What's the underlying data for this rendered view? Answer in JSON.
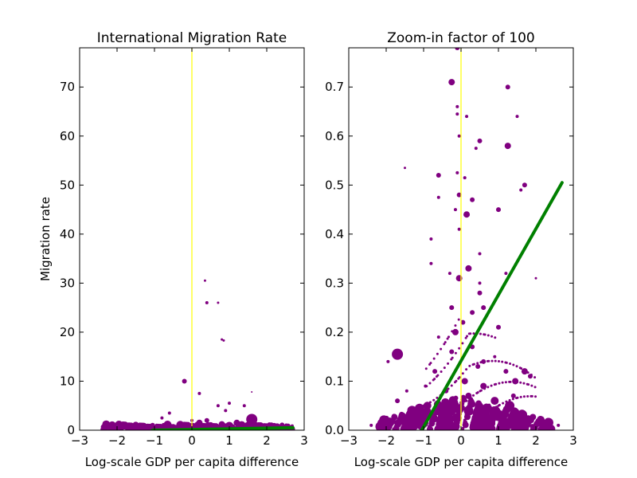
{
  "figure": {
    "background": "#ffffff"
  },
  "chart_data": [
    {
      "type": "scatter",
      "title": "International Migration Rate",
      "xlabel": "Log-scale GDP per capita difference",
      "ylabel": "Migration rate",
      "xlim": [
        -3,
        3
      ],
      "ylim": [
        0,
        78
      ],
      "xticks": [
        "−3",
        "−2",
        "−1",
        "0",
        "1",
        "2",
        "3"
      ],
      "yticks": [
        "0",
        "10",
        "20",
        "30",
        "40",
        "50",
        "60",
        "70"
      ],
      "colors": {
        "points": "#800080",
        "fit_line": "#008000",
        "zero_line": "#ffff00"
      },
      "grid": false,
      "zero_line_x": 0,
      "fit_line": {
        "x": [
          -1.05,
          2.7
        ],
        "y": [
          0.0,
          0.5
        ]
      },
      "series": [
        {
          "points": [
            [
              -2.4,
              0.2,
              2
            ],
            [
              -2.1,
              0.3,
              2
            ],
            [
              -1.9,
              0.5,
              3
            ],
            [
              -1.7,
              0.4,
              4
            ],
            [
              -1.5,
              0.8,
              5
            ],
            [
              -1.3,
              0.6,
              4
            ],
            [
              -1.1,
              0.5,
              3
            ],
            [
              -0.9,
              0.7,
              3
            ],
            [
              -0.7,
              0.4,
              3
            ],
            [
              -0.5,
              0.6,
              4
            ],
            [
              -0.3,
              1.0,
              3
            ],
            [
              -0.2,
              0.5,
              5
            ],
            [
              -0.1,
              1.2,
              3
            ],
            [
              0.1,
              0.8,
              4
            ],
            [
              0.2,
              1.5,
              4
            ],
            [
              0.3,
              0.6,
              5
            ],
            [
              0.4,
              2.0,
              3
            ],
            [
              0.5,
              1.0,
              4
            ],
            [
              0.6,
              0.7,
              3
            ],
            [
              0.8,
              1.2,
              4
            ],
            [
              1.0,
              0.9,
              5
            ],
            [
              1.2,
              1.5,
              4
            ],
            [
              1.4,
              0.6,
              3
            ],
            [
              1.6,
              2.2,
              7
            ],
            [
              1.8,
              0.8,
              3
            ],
            [
              2.0,
              0.5,
              3
            ],
            [
              2.2,
              1.0,
              3
            ],
            [
              2.5,
              0.4,
              2
            ],
            [
              2.7,
              0.3,
              2
            ],
            [
              -0.8,
              2.5,
              2
            ],
            [
              -0.6,
              3.5,
              2
            ],
            [
              0.2,
              7.5,
              2
            ],
            [
              0.7,
              5.0,
              2
            ],
            [
              1.0,
              5.5,
              2
            ],
            [
              0.9,
              4.0,
              2
            ],
            [
              -0.2,
              10.0,
              3
            ],
            [
              1.4,
              5.0,
              2
            ],
            [
              1.6,
              7.8,
              1
            ],
            [
              0.0,
              2.0,
              2
            ],
            [
              0.4,
              26.0,
              2
            ],
            [
              0.7,
              26.0,
              1.5
            ],
            [
              0.35,
              30.5,
              1.5
            ],
            [
              0.8,
              18.5,
              1.5
            ],
            [
              0.85,
              18.3,
              1.5
            ]
          ]
        }
      ]
    },
    {
      "type": "scatter",
      "title": "Zoom-in factor of 100",
      "xlabel": "Log-scale GDP per capita difference",
      "ylabel": "",
      "xlim": [
        -3,
        3
      ],
      "ylim": [
        0,
        0.78
      ],
      "xticks": [
        "−3",
        "−2",
        "−1",
        "0",
        "1",
        "2",
        "3"
      ],
      "yticks": [
        "0.0",
        "0.1",
        "0.2",
        "0.3",
        "0.4",
        "0.5",
        "0.6",
        "0.7"
      ],
      "colors": {
        "points": "#800080",
        "fit_line": "#008000",
        "zero_line": "#ffff00"
      },
      "grid": false,
      "zero_line_x": 0,
      "fit_line": {
        "x": [
          -1.05,
          2.7
        ],
        "y": [
          0.0,
          0.505
        ]
      },
      "series": [
        {
          "points": [
            [
              -0.1,
              0.78,
              3
            ],
            [
              -0.25,
              0.71,
              4
            ],
            [
              1.25,
              0.7,
              3
            ],
            [
              -0.1,
              0.66,
              2
            ],
            [
              -0.1,
              0.645,
              2
            ],
            [
              1.5,
              0.64,
              2
            ],
            [
              0.15,
              0.64,
              2
            ],
            [
              -0.05,
              0.6,
              2
            ],
            [
              0.5,
              0.59,
              3
            ],
            [
              1.25,
              0.58,
              4
            ],
            [
              0.4,
              0.575,
              2
            ],
            [
              -1.5,
              0.535,
              1.5
            ],
            [
              -0.6,
              0.52,
              3
            ],
            [
              0.1,
              0.515,
              2
            ],
            [
              -0.1,
              0.525,
              2
            ],
            [
              1.7,
              0.5,
              3
            ],
            [
              1.6,
              0.49,
              2
            ],
            [
              -0.6,
              0.475,
              2
            ],
            [
              -0.05,
              0.48,
              3
            ],
            [
              0.15,
              0.44,
              4
            ],
            [
              -0.15,
              0.45,
              2
            ],
            [
              1.0,
              0.45,
              3
            ],
            [
              0.3,
              0.47,
              3
            ],
            [
              -0.05,
              0.41,
              2
            ],
            [
              -0.8,
              0.39,
              2
            ],
            [
              -0.8,
              0.34,
              2
            ],
            [
              0.5,
              0.36,
              2
            ],
            [
              -0.3,
              0.32,
              2
            ],
            [
              0.2,
              0.33,
              4
            ],
            [
              -0.05,
              0.31,
              4
            ],
            [
              1.2,
              0.32,
              2
            ],
            [
              2.0,
              0.31,
              1.5
            ],
            [
              0.5,
              0.3,
              2
            ],
            [
              0.5,
              0.28,
              3
            ],
            [
              -0.25,
              0.25,
              3
            ],
            [
              -0.15,
              0.2,
              4
            ],
            [
              0.05,
              0.22,
              3
            ],
            [
              0.3,
              0.24,
              3
            ],
            [
              0.6,
              0.25,
              3
            ],
            [
              1.0,
              0.21,
              3
            ],
            [
              -1.7,
              0.155,
              7
            ],
            [
              -1.95,
              0.14,
              2
            ],
            [
              -0.6,
              0.19,
              2
            ],
            [
              -0.25,
              0.16,
              3
            ],
            [
              0.3,
              0.17,
              3
            ],
            [
              0.45,
              0.13,
              3
            ],
            [
              0.6,
              0.14,
              3
            ],
            [
              0.9,
              0.15,
              2
            ],
            [
              1.2,
              0.12,
              3
            ],
            [
              1.7,
              0.12,
              4
            ],
            [
              1.85,
              0.11,
              3
            ],
            [
              1.45,
              0.1,
              4
            ],
            [
              -0.7,
              0.12,
              3
            ],
            [
              -0.95,
              0.09,
              2
            ],
            [
              0.1,
              0.1,
              4
            ],
            [
              0.6,
              0.09,
              4
            ],
            [
              1.4,
              0.07,
              3
            ],
            [
              -1.45,
              0.08,
              2
            ],
            [
              -1.7,
              0.06,
              3
            ],
            [
              -0.4,
              0.08,
              3
            ],
            [
              0.2,
              0.07,
              4
            ],
            [
              0.9,
              0.06,
              5
            ],
            [
              1.3,
              0.05,
              6
            ],
            [
              -0.9,
              0.05,
              5
            ],
            [
              -1.25,
              0.03,
              3
            ],
            [
              -0.6,
              0.04,
              6
            ],
            [
              -0.2,
              0.05,
              7
            ],
            [
              0.2,
              0.04,
              6
            ],
            [
              0.5,
              0.03,
              5
            ],
            [
              1.0,
              0.03,
              7
            ],
            [
              1.6,
              0.02,
              4
            ],
            [
              -2.4,
              0.01,
              2
            ],
            [
              -2.2,
              0.005,
              3
            ],
            [
              -1.7,
              0.015,
              4
            ],
            [
              -1.4,
              0.01,
              4
            ],
            [
              -1.0,
              0.015,
              6
            ],
            [
              -0.3,
              0.01,
              6
            ],
            [
              0.4,
              0.015,
              6
            ],
            [
              1.1,
              0.01,
              6
            ],
            [
              1.9,
              0.008,
              3
            ],
            [
              2.3,
              0.005,
              2
            ],
            [
              2.6,
              0.01,
              2
            ],
            [
              -0.5,
              0.002,
              6
            ],
            [
              0.8,
              0.002,
              6
            ]
          ]
        }
      ]
    }
  ]
}
